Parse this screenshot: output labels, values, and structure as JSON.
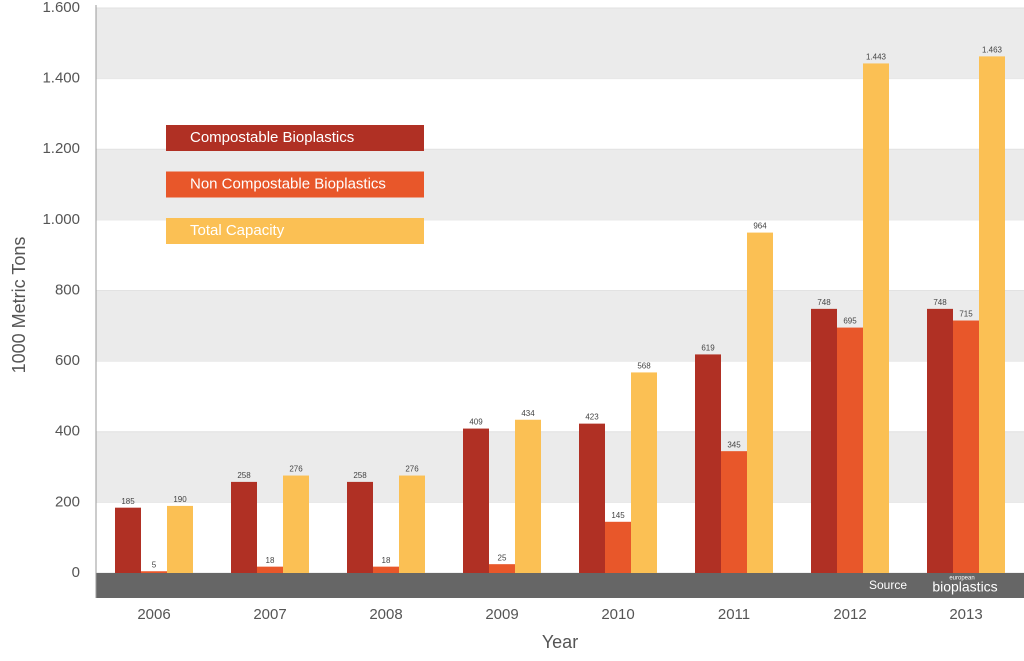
{
  "chart_data": {
    "type": "bar",
    "y_label": "1000 Metric Tons",
    "x_label": "Year",
    "categories": [
      "2006",
      "2007",
      "2008",
      "2009",
      "2010",
      "2011",
      "2012",
      "2013"
    ],
    "series": [
      {
        "name": "Compostable Bioplastics",
        "color": "#b03024",
        "values": [
          185,
          258,
          258,
          409,
          423,
          619,
          748,
          748
        ]
      },
      {
        "name": "Non Compostable Bioplastics",
        "color": "#e8572a",
        "values": [
          5,
          18,
          18,
          25,
          145,
          345,
          695,
          715
        ]
      },
      {
        "name": "Total Capacity",
        "color": "#fbc054",
        "values": [
          190,
          276,
          276,
          434,
          568,
          964,
          1443,
          1463
        ],
        "value_labels": [
          "190",
          "276",
          "276",
          "434",
          "568",
          "964",
          "1.443",
          "1.463"
        ]
      }
    ],
    "ylim": [
      0,
      1600
    ],
    "yticks": [
      0,
      200,
      400,
      600,
      800,
      {
        "value": 1000,
        "label": "1.000"
      },
      {
        "value": 1200,
        "label": "1.200"
      },
      {
        "value": 1400,
        "label": "1.400"
      },
      {
        "value": 1600,
        "label": "1.600"
      }
    ],
    "grid": true,
    "legend": "upper left",
    "source_label": "Source",
    "source_logo_small": "european",
    "source_logo": "bioplastics"
  }
}
